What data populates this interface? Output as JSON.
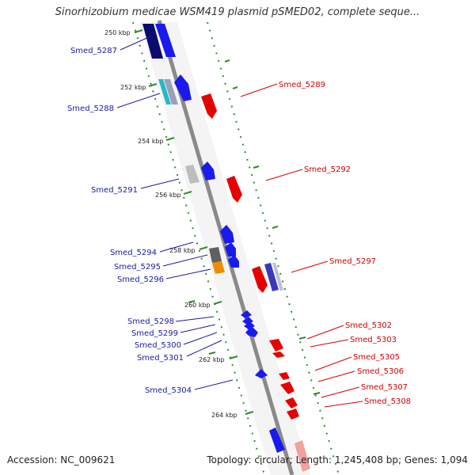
{
  "title": "Sinorhizobium medicae WSM419 plasmid pSMED02, complete seque...",
  "footer": {
    "accession": "Accession: NC_009621",
    "summary": "Topology: circular; Length: 1,245,408 bp; Genes: 1,094"
  },
  "kbp_labels": [
    "250 kbp",
    "252 kbp",
    "254 kbp",
    "256 kbp",
    "258 kbp",
    "260 kbp",
    "262 kbp",
    "264 kbp"
  ],
  "genes_forward": [
    "Smed_5287",
    "Smed_5288",
    "Smed_5291",
    "Smed_5294",
    "Smed_5295",
    "Smed_5296",
    "Smed_5298",
    "Smed_5299",
    "Smed_5300",
    "Smed_5301",
    "Smed_5304"
  ],
  "genes_reverse": [
    "Smed_5289",
    "Smed_5292",
    "Smed_5297",
    "Smed_5302",
    "Smed_5303",
    "Smed_5305",
    "Smed_5306",
    "Smed_5307",
    "Smed_5308"
  ],
  "colors": {
    "forward_gene": "#1a1aa6",
    "reverse_gene": "#d40000",
    "backbone": "#8a8a8a",
    "gc_ticks": "#2e8b2e",
    "highlight_orange": "#f08c00",
    "highlight_cyan": "#27b8c8"
  }
}
